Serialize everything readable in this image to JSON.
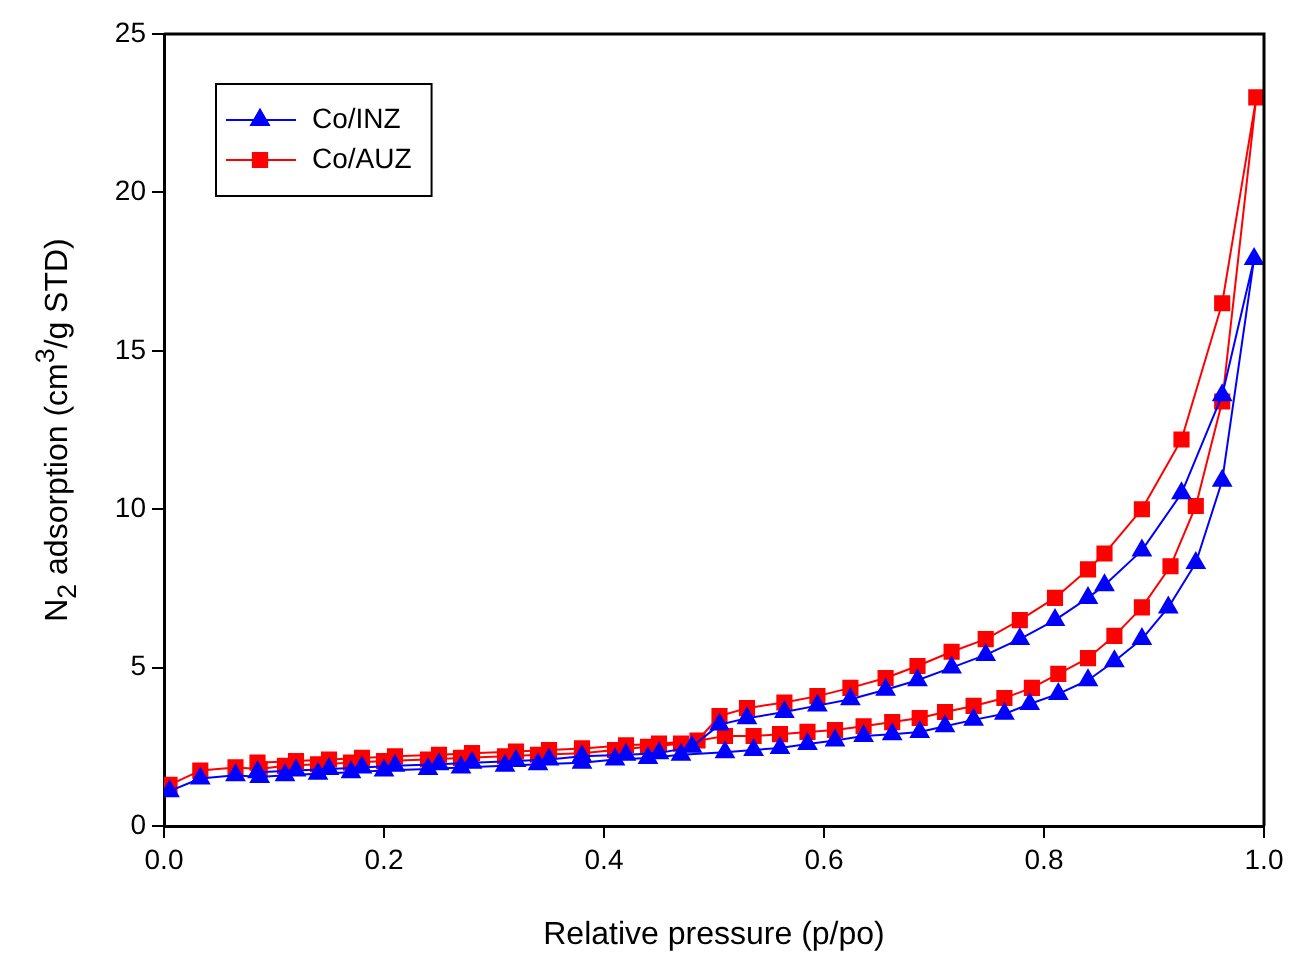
{
  "chart_data": {
    "type": "line",
    "xlabel": "Relative pressure (p/po)",
    "ylabel": "N$_{2}$ adsorption (cm$^{3}$/g STD)",
    "xlim": [
      0,
      1
    ],
    "xticks": [
      {
        "value": 0,
        "label": "0.0"
      },
      {
        "value": 0.2,
        "label": "0.2"
      },
      {
        "value": 0.4,
        "label": "0.4"
      },
      {
        "value": 0.6,
        "label": "0.6"
      },
      {
        "value": 0.8,
        "label": "0.8"
      },
      {
        "value": 1,
        "label": "1.0"
      }
    ],
    "ylim": [
      0,
      25
    ],
    "yticks": [
      0,
      5,
      10,
      15,
      20,
      25
    ],
    "grid": false,
    "legend": "top left",
    "line_style": "solid",
    "series": [
      {
        "name": "Co/INZ",
        "color": "#0000ff",
        "marker": "triangle",
        "x": [
          0.005,
          0.033,
          0.065,
          0.087,
          0.11,
          0.14,
          0.17,
          0.2,
          0.24,
          0.27,
          0.31,
          0.34,
          0.38,
          0.41,
          0.44,
          0.47,
          0.51,
          0.536,
          0.56,
          0.585,
          0.61,
          0.636,
          0.662,
          0.687,
          0.71,
          0.736,
          0.764,
          0.787,
          0.813,
          0.84,
          0.864,
          0.889,
          0.913,
          0.938,
          0.962,
          0.991,
          0.962,
          0.925,
          0.889,
          0.855,
          0.84,
          0.81,
          0.778,
          0.747,
          0.716,
          0.685,
          0.656,
          0.624,
          0.594,
          0.564,
          0.53,
          0.505,
          0.48,
          0.45,
          0.42,
          0.38,
          0.35,
          0.32,
          0.28,
          0.25,
          0.21,
          0.18,
          0.15,
          0.12,
          0.085
        ],
        "values": [
          1.1,
          1.5,
          1.6,
          1.55,
          1.6,
          1.65,
          1.7,
          1.75,
          1.8,
          1.85,
          1.9,
          1.95,
          2.0,
          2.1,
          2.15,
          2.25,
          2.33,
          2.4,
          2.46,
          2.59,
          2.7,
          2.84,
          2.9,
          2.97,
          3.15,
          3.35,
          3.54,
          3.85,
          4.17,
          4.6,
          5.2,
          5.9,
          6.9,
          8.3,
          10.9,
          17.9,
          13.6,
          10.5,
          8.7,
          7.6,
          7.2,
          6.5,
          5.9,
          5.4,
          5.0,
          4.6,
          4.3,
          4.0,
          3.8,
          3.6,
          3.4,
          3.2,
          2.5,
          2.3,
          2.25,
          2.2,
          2.1,
          2.05,
          2.0,
          1.95,
          1.9,
          1.85,
          1.8,
          1.75,
          1.7
        ]
      },
      {
        "name": "Co/AUZ",
        "color": "#ff0000",
        "marker": "square",
        "x": [
          0.005,
          0.033,
          0.065,
          0.087,
          0.11,
          0.14,
          0.17,
          0.2,
          0.24,
          0.27,
          0.31,
          0.34,
          0.38,
          0.41,
          0.44,
          0.47,
          0.51,
          0.536,
          0.56,
          0.585,
          0.61,
          0.636,
          0.662,
          0.687,
          0.71,
          0.736,
          0.764,
          0.789,
          0.813,
          0.84,
          0.864,
          0.889,
          0.915,
          0.938,
          0.962,
          0.993,
          0.962,
          0.925,
          0.889,
          0.855,
          0.84,
          0.81,
          0.778,
          0.747,
          0.716,
          0.685,
          0.656,
          0.624,
          0.594,
          0.564,
          0.53,
          0.505,
          0.485,
          0.45,
          0.42,
          0.38,
          0.35,
          0.32,
          0.28,
          0.25,
          0.21,
          0.18,
          0.15,
          0.12,
          0.085
        ],
        "values": [
          1.3,
          1.75,
          1.85,
          1.8,
          1.9,
          1.95,
          2.0,
          2.05,
          2.1,
          2.15,
          2.2,
          2.25,
          2.3,
          2.4,
          2.5,
          2.6,
          2.84,
          2.84,
          2.9,
          2.97,
          3.03,
          3.15,
          3.28,
          3.41,
          3.6,
          3.79,
          4.04,
          4.36,
          4.8,
          5.3,
          6.0,
          6.9,
          8.2,
          10.1,
          13.4,
          23.0,
          16.5,
          12.2,
          10.0,
          8.6,
          8.1,
          7.2,
          6.5,
          5.9,
          5.5,
          5.05,
          4.67,
          4.36,
          4.1,
          3.9,
          3.72,
          3.47,
          2.7,
          2.6,
          2.55,
          2.45,
          2.4,
          2.35,
          2.3,
          2.25,
          2.2,
          2.15,
          2.1,
          2.05,
          2.0
        ]
      }
    ]
  }
}
